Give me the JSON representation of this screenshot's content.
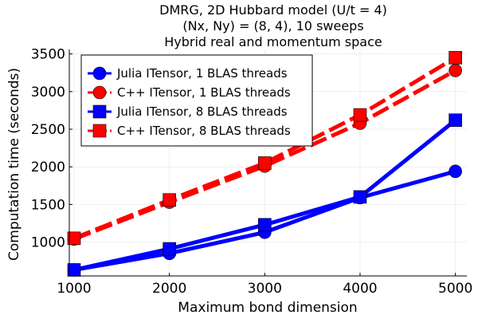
{
  "chart_data": {
    "type": "line",
    "title": [
      "DMRG, 2D Hubbard model (U/t = 4)",
      "(Nx, Ny) = (8, 4), 10 sweeps",
      "Hybrid real and momentum space"
    ],
    "xlabel": "Maximum bond dimension",
    "ylabel": "Computation time (seconds)",
    "xlim": [
      950,
      5120
    ],
    "ylim": [
      550,
      3560
    ],
    "xticks": [
      1000,
      2000,
      3000,
      4000,
      5000
    ],
    "yticks": [
      1000,
      1500,
      2000,
      2500,
      3000,
      3500
    ],
    "grid": true,
    "legend_position": "top-left",
    "x": [
      1000,
      2000,
      3000,
      4000,
      5000
    ],
    "series": [
      {
        "name": "Julia ITensor, 1 BLAS threads",
        "values": [
          630,
          850,
          1130,
          1590,
          1940
        ],
        "color": "#0000ff",
        "marker": "circle",
        "dash": false
      },
      {
        "name": "C++ ITensor, 1 BLAS threads",
        "values": [
          1040,
          1530,
          2010,
          2580,
          3280
        ],
        "color": "#ff0000",
        "marker": "circle",
        "dash": true
      },
      {
        "name": "Julia ITensor, 8 BLAS threads",
        "values": [
          630,
          910,
          1230,
          1600,
          2620
        ],
        "color": "#0000ff",
        "marker": "square",
        "dash": false
      },
      {
        "name": "C++ ITensor, 8 BLAS threads",
        "values": [
          1050,
          1560,
          2050,
          2690,
          3450
        ],
        "color": "#ff0000",
        "marker": "square",
        "dash": true
      }
    ]
  }
}
